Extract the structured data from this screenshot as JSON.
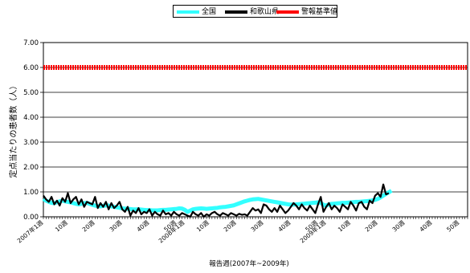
{
  "chart_data": {
    "type": "line",
    "ylabel": "定点当たりの患者数（人）",
    "xlabel": "報告週(2007年~2009年)",
    "ylim": [
      0,
      7
    ],
    "y_ticks": [
      "0.00",
      "1.00",
      "2.00",
      "3.00",
      "4.00",
      "5.00",
      "6.00",
      "7.00"
    ],
    "x_tick_labels": [
      {
        "week": 1,
        "label": "2007年1週"
      },
      {
        "week": 10,
        "label": "10週"
      },
      {
        "week": 20,
        "label": "20週"
      },
      {
        "week": 30,
        "label": "30週"
      },
      {
        "week": 40,
        "label": "40週"
      },
      {
        "week": 50,
        "label": "50週"
      },
      {
        "week": 53,
        "label": "2008年1週"
      },
      {
        "week": 62,
        "label": "10週"
      },
      {
        "week": 72,
        "label": "20週"
      },
      {
        "week": 82,
        "label": "30週"
      },
      {
        "week": 92,
        "label": "40週"
      },
      {
        "week": 102,
        "label": "50週"
      },
      {
        "week": 105,
        "label": "2009年1週"
      },
      {
        "week": 114,
        "label": "10週"
      },
      {
        "week": 124,
        "label": "20週"
      },
      {
        "week": 134,
        "label": "30週"
      },
      {
        "week": 144,
        "label": "40週"
      },
      {
        "week": 154,
        "label": "50週"
      }
    ],
    "x_range": [
      1,
      157
    ],
    "grid": true,
    "legend_position": "top-center",
    "series": [
      {
        "name": "全国",
        "color": "#33ffff",
        "values": [
          0.72,
          0.65,
          0.6,
          0.56,
          0.55,
          0.58,
          0.62,
          0.65,
          0.62,
          0.6,
          0.58,
          0.55,
          0.52,
          0.5,
          0.52,
          0.55,
          0.56,
          0.52,
          0.48,
          0.45,
          0.43,
          0.42,
          0.44,
          0.46,
          0.45,
          0.42,
          0.4,
          0.38,
          0.36,
          0.34,
          0.33,
          0.32,
          0.31,
          0.3,
          0.3,
          0.3,
          0.29,
          0.28,
          0.27,
          0.27,
          0.26,
          0.26,
          0.26,
          0.27,
          0.28,
          0.28,
          0.29,
          0.3,
          0.31,
          0.32,
          0.34,
          0.33,
          0.28,
          0.2,
          0.25,
          0.3,
          0.32,
          0.33,
          0.34,
          0.33,
          0.32,
          0.33,
          0.34,
          0.35,
          0.36,
          0.38,
          0.39,
          0.4,
          0.42,
          0.44,
          0.46,
          0.5,
          0.54,
          0.58,
          0.62,
          0.65,
          0.68,
          0.7,
          0.71,
          0.72,
          0.7,
          0.68,
          0.66,
          0.64,
          0.62,
          0.6,
          0.58,
          0.56,
          0.54,
          0.52,
          0.5,
          0.49,
          0.49,
          0.5,
          0.51,
          0.52,
          0.53,
          0.54,
          0.55,
          0.56,
          0.57,
          0.58,
          0.56,
          0.48,
          0.45,
          0.5,
          0.52,
          0.53,
          0.54,
          0.55,
          0.56,
          0.56,
          0.57,
          0.58,
          0.59,
          0.6,
          0.6,
          0.61,
          0.62,
          0.63,
          0.64,
          0.66,
          0.68,
          0.72,
          0.78,
          0.85,
          0.92,
          0.98,
          1.05
        ]
      },
      {
        "name": "和歌山県",
        "color": "#000000",
        "values": [
          0.85,
          0.7,
          0.6,
          0.8,
          0.5,
          0.65,
          0.45,
          0.75,
          0.6,
          0.95,
          0.55,
          0.7,
          0.8,
          0.5,
          0.7,
          0.4,
          0.6,
          0.55,
          0.5,
          0.8,
          0.35,
          0.55,
          0.4,
          0.6,
          0.3,
          0.55,
          0.35,
          0.45,
          0.6,
          0.3,
          0.2,
          0.4,
          0.05,
          0.25,
          0.15,
          0.35,
          0.1,
          0.2,
          0.15,
          0.3,
          0.05,
          0.2,
          0.1,
          0.05,
          0.25,
          0.1,
          0.15,
          0.05,
          0.2,
          0.1,
          0.05,
          0.15,
          0.1,
          0.05,
          0.0,
          0.2,
          0.1,
          0.05,
          0.15,
          0.0,
          0.1,
          0.05,
          0.15,
          0.2,
          0.1,
          0.05,
          0.15,
          0.1,
          0.05,
          0.15,
          0.1,
          0.05,
          0.12,
          0.08,
          0.1,
          0.05,
          0.2,
          0.35,
          0.25,
          0.3,
          0.15,
          0.5,
          0.45,
          0.3,
          0.2,
          0.35,
          0.2,
          0.45,
          0.3,
          0.15,
          0.25,
          0.4,
          0.55,
          0.45,
          0.3,
          0.5,
          0.35,
          0.25,
          0.45,
          0.3,
          0.15,
          0.5,
          0.8,
          0.2,
          0.4,
          0.55,
          0.3,
          0.45,
          0.35,
          0.2,
          0.5,
          0.4,
          0.3,
          0.6,
          0.45,
          0.25,
          0.55,
          0.6,
          0.4,
          0.3,
          0.65,
          0.55,
          0.85,
          0.95,
          0.8,
          1.3,
          0.9,
          0.95
        ]
      },
      {
        "name": "警報基準値",
        "color": "#ff0000",
        "constant": 6.0
      }
    ]
  }
}
